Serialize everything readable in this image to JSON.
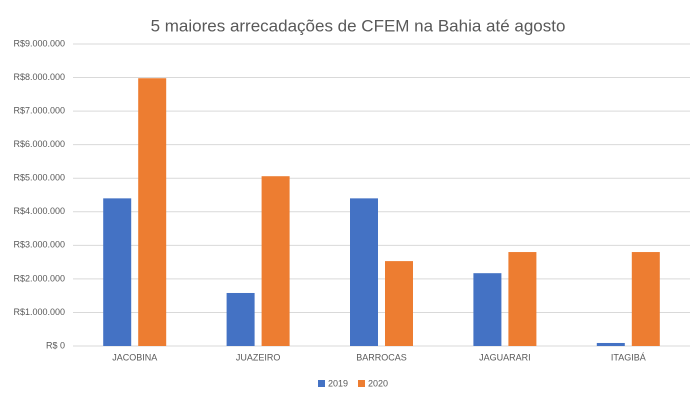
{
  "chart_data": {
    "type": "bar",
    "title": "5 maiores arrecadações de CFEM na Bahia até agosto",
    "categories": [
      "JACOBINA",
      "JUAZEIRO",
      "BARROCAS",
      "JAGUARARI",
      "ITAGIBÁ"
    ],
    "series": [
      {
        "name": "2019",
        "color": "#4472c4",
        "values": [
          4400000,
          1580000,
          4400000,
          2170000,
          90000
        ]
      },
      {
        "name": "2020",
        "color": "#ed7d31",
        "values": [
          7980000,
          5060000,
          2530000,
          2800000,
          2800000
        ]
      }
    ],
    "ylim": [
      0,
      9000000
    ],
    "yticks": [
      {
        "value": 0,
        "label": "R$ 0"
      },
      {
        "value": 1000000,
        "label": "R$1.000.000"
      },
      {
        "value": 2000000,
        "label": "R$2.000.000"
      },
      {
        "value": 3000000,
        "label": "R$3.000.000"
      },
      {
        "value": 4000000,
        "label": "R$4.000.000"
      },
      {
        "value": 5000000,
        "label": "R$5.000.000"
      },
      {
        "value": 6000000,
        "label": "R$6.000.000"
      },
      {
        "value": 7000000,
        "label": "R$7.000.000"
      },
      {
        "value": 8000000,
        "label": "R$8.000.000"
      },
      {
        "value": 9000000,
        "label": "R$9.000.000"
      }
    ],
    "grid": true,
    "legend": "bottom"
  }
}
